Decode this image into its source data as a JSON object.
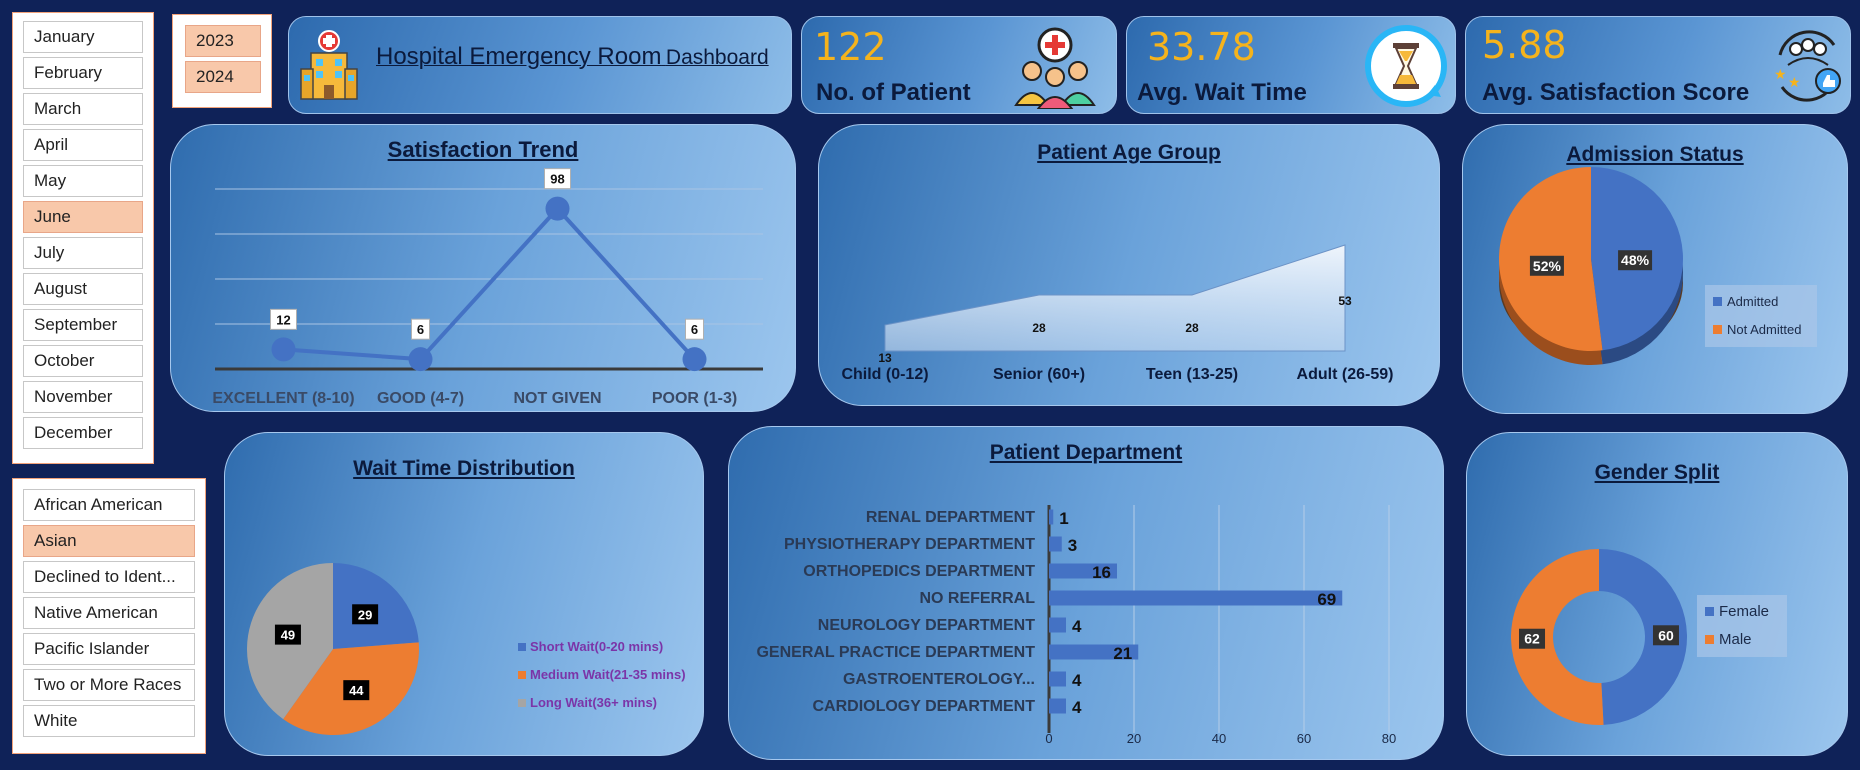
{
  "months": {
    "items": [
      "January",
      "February",
      "March",
      "April",
      "May",
      "June",
      "July",
      "August",
      "September",
      "October",
      "November",
      "December"
    ],
    "selected": "June"
  },
  "years": {
    "items": [
      "2023",
      "2024"
    ]
  },
  "races": {
    "items": [
      "African American",
      "Asian",
      "Declined to Ident...",
      "Native American",
      "Pacific Islander",
      "Two or More Races",
      "White"
    ],
    "selected": "Asian"
  },
  "header": {
    "title_main": "Hospital Emergency Room",
    "title_suffix": "Dashboard",
    "icon": "hospital-icon"
  },
  "kpis": [
    {
      "value": "122",
      "label": "No. of Patient",
      "icon": "patients-icon"
    },
    {
      "value": "33.78",
      "label": "Avg. Wait Time",
      "icon": "hourglass-icon"
    },
    {
      "value": "5.88",
      "label": "Avg. Satisfaction Score",
      "icon": "satisfaction-icon"
    }
  ],
  "colors": {
    "blue": "#4472c4",
    "orange": "#ed7d31",
    "gray": "#a5a5a5",
    "kpi_value": "#f5b31c",
    "selected": "#f8c8aa"
  },
  "chart_data": [
    {
      "type": "line",
      "title": "Satisfaction Trend",
      "categories": [
        "EXCELLENT (8-10)",
        "GOOD (4-7)",
        "NOT GIVEN",
        "POOR (1-3)"
      ],
      "values": [
        12,
        6,
        98,
        6
      ],
      "ylim": [
        0,
        110
      ],
      "grid": true
    },
    {
      "type": "area",
      "title": "Patient Age Group",
      "categories": [
        "Child (0-12)",
        "Senior (60+)",
        "Teen (13-25)",
        "Adult (26-59)"
      ],
      "values": [
        13,
        28,
        28,
        53
      ]
    },
    {
      "type": "pie",
      "title": "Admission Status",
      "categories": [
        "Admitted",
        "Not Admitted"
      ],
      "values": [
        48,
        52
      ],
      "labels": [
        "48%",
        "52%"
      ],
      "legend": "right"
    },
    {
      "type": "pie",
      "title": "Wait Time Distribution",
      "categories": [
        "Short Wait(0-20 mins)",
        "Medium Wait(21-35 mins)",
        "Long Wait(36+ mins)"
      ],
      "values": [
        29,
        44,
        49
      ],
      "legend": "right"
    },
    {
      "type": "bar",
      "title": "Patient Department",
      "categories": [
        "RENAL DEPARTMENT",
        "PHYSIOTHERAPY DEPARTMENT",
        "ORTHOPEDICS DEPARTMENT",
        "NO REFERRAL",
        "NEUROLOGY DEPARTMENT",
        "GENERAL PRACTICE DEPARTMENT",
        "GASTROENTEROLOGY...",
        "CARDIOLOGY DEPARTMENT"
      ],
      "values": [
        1,
        3,
        16,
        69,
        4,
        21,
        4,
        4
      ],
      "xticks": [
        "0",
        "20",
        "40",
        "60",
        "80"
      ],
      "xlim": [
        0,
        80
      ],
      "grid": true
    },
    {
      "type": "pie",
      "title": "Gender Split",
      "categories": [
        "Female",
        "Male"
      ],
      "values": [
        60,
        62
      ],
      "donut": true,
      "legend": "right"
    }
  ]
}
